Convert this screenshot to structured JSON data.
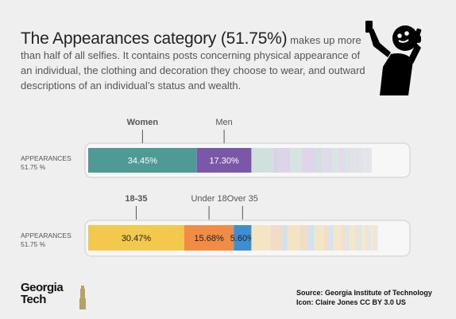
{
  "headline": {
    "title": "The Appearances category (51.75%)",
    "body": "makes up more than half of all selfies. It contains posts concerning physical appearance of an individual, the clothing and decoration they choose to wear, and outward descriptions of an individual’s status and wealth."
  },
  "icon": "person-taking-selfie-icon",
  "logo": {
    "line1": "Georgia",
    "line2": "Tech"
  },
  "credits": {
    "source": "Source: Georgia Institute of Technology",
    "icon": "Icon: Claire Jones CC BY 3.0 US"
  },
  "chart_data": [
    {
      "type": "bar",
      "orientation": "horizontal-stacked",
      "row_label": "APPEARANCES",
      "row_value": "51.75 %",
      "xlim": [
        0,
        100
      ],
      "series": [
        {
          "name": "Women",
          "value": 34.45,
          "label": "34.45%",
          "color": "#4f9a94"
        },
        {
          "name": "Men",
          "value": 17.3,
          "label": "17.30%",
          "color": "#7b57a8"
        }
      ],
      "faded_remainder": [
        {
          "value": 7.0,
          "color": "#cfe0dd"
        },
        {
          "value": 1.6,
          "color": "#d8d3e3"
        },
        {
          "value": 3.8,
          "color": "#dcd4e8"
        },
        {
          "value": 3.6,
          "color": "#d5e3e1"
        },
        {
          "value": 4.6,
          "color": "#ddd6e8"
        },
        {
          "value": 1.8,
          "color": "#cfe0dd"
        },
        {
          "value": 3.4,
          "color": "#e0dbe9"
        },
        {
          "value": 1.9,
          "color": "#d8e5e3"
        },
        {
          "value": 2.2,
          "color": "#e2dcea"
        },
        {
          "value": 1.5,
          "color": "#dbe6e4"
        },
        {
          "value": 1.4,
          "color": "#e3dfeb"
        },
        {
          "value": 1.5,
          "color": "#dae4e2"
        },
        {
          "value": 1.2,
          "color": "#e4e0ec"
        },
        {
          "value": 1.0,
          "color": "#dfe8e6"
        },
        {
          "value": 0.9,
          "color": "#e4e1ec"
        },
        {
          "value": 0.8,
          "color": "#e2e9e7"
        }
      ]
    },
    {
      "type": "bar",
      "orientation": "horizontal-stacked",
      "row_label": "APPEARANCES",
      "row_value": "51.75 %",
      "xlim": [
        0,
        100
      ],
      "series": [
        {
          "name": "18-35",
          "value": 30.47,
          "label": "30.47%",
          "color": "#f2c94c"
        },
        {
          "name": "Under 18",
          "value": 15.68,
          "label": "15.68%",
          "color": "#f08c43"
        },
        {
          "name": "Over 35",
          "value": 5.6,
          "label": "5.60%",
          "color": "#3f8ed2"
        }
      ],
      "faded_remainder": [
        {
          "value": 6.0,
          "color": "#f4e6c2"
        },
        {
          "value": 4.0,
          "color": "#f1dcc8"
        },
        {
          "value": 1.4,
          "color": "#cfe0ee"
        },
        {
          "value": 4.0,
          "color": "#f3e5c4"
        },
        {
          "value": 2.6,
          "color": "#f1dcc8"
        },
        {
          "value": 2.0,
          "color": "#d3e2ee"
        },
        {
          "value": 3.0,
          "color": "#f3e6c6"
        },
        {
          "value": 1.6,
          "color": "#f1ddca"
        },
        {
          "value": 1.4,
          "color": "#d6e4ef"
        },
        {
          "value": 2.4,
          "color": "#f4e7c8"
        },
        {
          "value": 1.5,
          "color": "#f2dfcd"
        },
        {
          "value": 1.2,
          "color": "#d9e6ef"
        },
        {
          "value": 1.6,
          "color": "#f4e8cb"
        },
        {
          "value": 1.2,
          "color": "#f2e1cf"
        },
        {
          "value": 1.0,
          "color": "#dbe7ef"
        },
        {
          "value": 1.2,
          "color": "#f5e9cd"
        },
        {
          "value": 1.0,
          "color": "#f3e3d1"
        },
        {
          "value": 0.8,
          "color": "#dde8ef"
        },
        {
          "value": 0.9,
          "color": "#f5eacf"
        },
        {
          "value": 0.7,
          "color": "#f3e4d3"
        },
        {
          "value": 0.6,
          "color": "#dfe9ef"
        }
      ]
    }
  ]
}
